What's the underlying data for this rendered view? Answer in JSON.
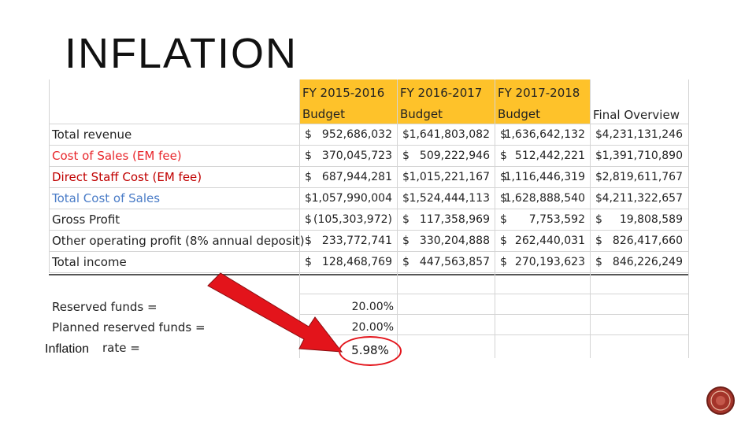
{
  "title": "INFLATION",
  "table": {
    "headers": [
      {
        "line1": "FY 2015-2016",
        "line2": "Budget"
      },
      {
        "line1": "FY 2016-2017",
        "line2": "Budget"
      },
      {
        "line1": "FY 2017-2018",
        "line2": "Budget"
      },
      {
        "line1": "",
        "line2": "Final Overview"
      }
    ],
    "rows": [
      {
        "label": "Total revenue",
        "color": "#222222",
        "values": [
          "952,686,032",
          "1,641,803,082",
          "1,636,642,132",
          "4,231,131,246"
        ]
      },
      {
        "label": "Cost of Sales (EM fee)",
        "color": "#e8262b",
        "values": [
          "370,045,723",
          "509,222,946",
          "512,442,221",
          "1,391,710,890"
        ]
      },
      {
        "label": "Direct Staff Cost (EM fee)",
        "color": "#c00000",
        "values": [
          "687,944,281",
          "1,015,221,167",
          "1,116,446,319",
          "2,819,611,767"
        ]
      },
      {
        "label": "Total Cost of Sales",
        "color": "#4a7cc7",
        "values": [
          "1,057,990,004",
          "1,524,444,113",
          "1,628,888,540",
          "4,211,322,657"
        ]
      },
      {
        "label": "Gross Profit",
        "color": "#222222",
        "values": [
          "(105,303,972)",
          "117,358,969",
          "7,753,592",
          "19,808,589"
        ]
      },
      {
        "label": "Other operating profit (8% annual deposit)",
        "color": "#222222",
        "values": [
          "233,772,741",
          "330,204,888",
          "262,440,031",
          "826,417,660"
        ]
      },
      {
        "label": "Total income",
        "color": "#222222",
        "values": [
          "128,468,769",
          "447,563,857",
          "270,193,623",
          "846,226,249"
        ]
      }
    ],
    "currency_symbol": "$",
    "reserved_funds": {
      "label": "Reserved funds =",
      "value": "20.00%"
    },
    "planned_reserved_funds": {
      "label": "Planned reserved funds =",
      "value": "20.00%"
    },
    "rate_label": "rate ="
  },
  "annotation": {
    "inflation_label": "Inflation",
    "inflation_rate": "5.98%",
    "arrow_color": "#e3141b"
  }
}
